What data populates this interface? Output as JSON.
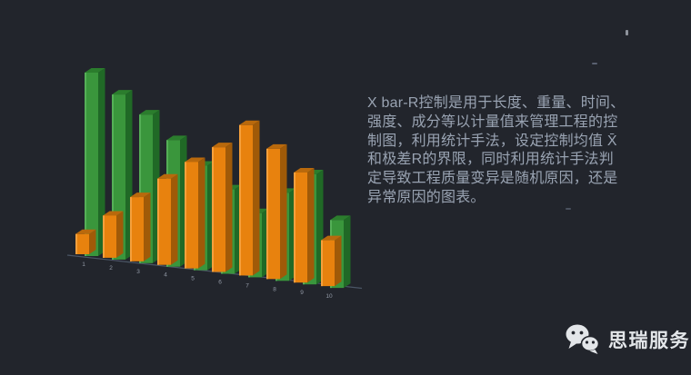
{
  "page": {
    "background_color": "#22252c"
  },
  "description": {
    "text_color": "#99a3b2",
    "lines": [
      "X bar-R控制是用于长度、重量、时间、",
      "强度、成分等以计量值来管理工程的控",
      "制图，利用统计手法，设定控制均值 X̄",
      "和极差R的界限，同时利用统计手法判",
      "定导致工程质量变异是随机原因，还是",
      "异常原因的图表。"
    ]
  },
  "footer": {
    "brand": "思瑞服务",
    "icon": "wechat-icon",
    "text_color": "#e3e6e9"
  },
  "chart_data": {
    "type": "bar",
    "style": "3d",
    "title": "",
    "xlabel": "",
    "ylabel": "",
    "categories": [
      "1",
      "2",
      "3",
      "4",
      "5",
      "6",
      "7",
      "8",
      "9",
      "10"
    ],
    "series": [
      {
        "name": "orange",
        "values": [
          1.1,
          2.3,
          3.5,
          4.7,
          5.8,
          6.8,
          8.2,
          7.1,
          6.0,
          2.5
        ]
      },
      {
        "name": "green",
        "values": [
          10.0,
          9.0,
          8.1,
          6.9,
          5.7,
          4.6,
          3.5,
          4.8,
          6.0,
          3.7
        ]
      }
    ],
    "ylim": [
      0,
      10
    ],
    "grid": false,
    "legend": false,
    "axis_color": "#4a5565",
    "tick_color": "#9299a6",
    "colors": {
      "orange": {
        "front": "#E8820E",
        "light": "#F5A03C",
        "top": "#B9690C",
        "side": "#A05A08"
      },
      "green": {
        "front": "#3A963C",
        "light": "#55AF57",
        "top": "#2B7D2D",
        "side": "#206926"
      }
    }
  }
}
